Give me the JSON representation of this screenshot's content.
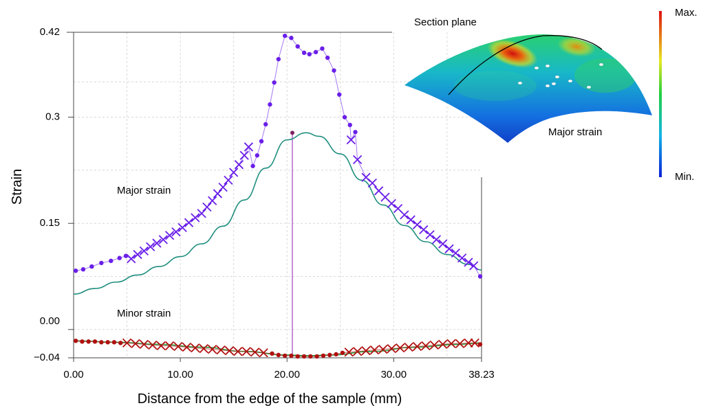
{
  "chart_data": {
    "type": "scatter",
    "xlabel": "Distance from the edge of the sample (mm)",
    "ylabel": "Strain",
    "xlim": [
      0,
      38.23
    ],
    "ylim": [
      -0.04,
      0.42
    ],
    "x_ticks": [
      {
        "value": 0,
        "label": "0.00"
      },
      {
        "value": 10,
        "label": "10.00"
      },
      {
        "value": 20,
        "label": "20.00"
      },
      {
        "value": 30,
        "label": "30.00"
      },
      {
        "value": 38.23,
        "label": "38.23"
      }
    ],
    "y_ticks": [
      {
        "value": 0.42,
        "label": "0.42"
      },
      {
        "value": 0.3,
        "label": "0.3"
      },
      {
        "value": 0.15,
        "label": "0.15"
      },
      {
        "value": 0.0,
        "label": "0.00"
      },
      {
        "value": -0.04,
        "label": "−0.04"
      }
    ],
    "grid": true,
    "marker_x": 20.5,
    "annotations": {
      "major": "Major strain",
      "minor": "Minor strain"
    },
    "series": [
      {
        "id": "major_dots",
        "color": "#6a1fe8",
        "marker": "dot",
        "x": [
          0.2,
          0.9,
          1.7,
          2.6,
          3.5,
          4.3,
          4.9,
          19.8,
          20.4,
          21.0,
          21.6,
          22.1,
          22.7,
          23.3,
          23.8,
          24.4,
          24.9,
          25.4,
          25.9,
          26.4,
          38.1
        ],
        "y": [
          0.083,
          0.085,
          0.089,
          0.094,
          0.097,
          0.101,
          0.104,
          0.415,
          0.412,
          0.4,
          0.391,
          0.389,
          0.392,
          0.397,
          0.384,
          0.366,
          0.332,
          0.3,
          0.289,
          0.279,
          0.075
        ]
      },
      {
        "id": "major_dots_left_rise",
        "color": "#6a1fe8",
        "marker": "dot",
        "x": [
          16.8,
          17.2,
          17.6,
          18.0,
          18.4,
          18.8,
          19.2
        ],
        "y": [
          0.231,
          0.246,
          0.266,
          0.29,
          0.318,
          0.349,
          0.382
        ]
      },
      {
        "id": "major_crosses",
        "color": "#6a1fe8",
        "marker": "cross",
        "x": [
          5.4,
          6.0,
          6.6,
          7.2,
          7.8,
          8.4,
          9.0,
          9.6,
          10.2,
          10.8,
          11.4,
          12.0,
          12.5,
          13.0,
          13.5,
          14.0,
          14.5,
          15.0,
          15.5,
          16.0,
          16.4,
          26.0,
          26.6,
          27.4,
          28.0,
          28.6,
          29.2,
          29.8,
          30.4,
          31.0,
          31.6,
          32.2,
          32.8,
          33.4,
          34.0,
          34.6,
          35.2,
          35.8,
          36.4,
          37.0,
          37.5
        ],
        "y": [
          0.1,
          0.106,
          0.111,
          0.117,
          0.122,
          0.127,
          0.133,
          0.138,
          0.144,
          0.151,
          0.158,
          0.164,
          0.173,
          0.182,
          0.192,
          0.201,
          0.211,
          0.222,
          0.233,
          0.246,
          0.258,
          0.268,
          0.24,
          0.215,
          0.207,
          0.196,
          0.187,
          0.178,
          0.171,
          0.162,
          0.155,
          0.148,
          0.141,
          0.134,
          0.127,
          0.121,
          0.114,
          0.108,
          0.101,
          0.095,
          0.09
        ]
      },
      {
        "id": "major_fit",
        "color": "#1e8e7e",
        "marker": "line",
        "x": [
          0,
          2,
          4,
          6,
          8,
          10,
          12,
          14,
          16,
          18,
          20,
          21.8,
          23,
          25,
          27,
          29,
          31,
          33,
          35,
          37,
          38.23
        ],
        "y": [
          0.05,
          0.058,
          0.067,
          0.077,
          0.089,
          0.103,
          0.121,
          0.146,
          0.183,
          0.228,
          0.268,
          0.278,
          0.273,
          0.248,
          0.211,
          0.176,
          0.147,
          0.124,
          0.106,
          0.092,
          0.084
        ]
      },
      {
        "id": "minor_dots",
        "color": "#b01010",
        "marker": "dot",
        "x": [
          0.2,
          0.8,
          1.4,
          2.0,
          2.6,
          3.2,
          3.8,
          4.4,
          18.6,
          19.2,
          19.8,
          20.4,
          21.0,
          21.6,
          22.2,
          22.8,
          23.4,
          24.0,
          24.6,
          25.2,
          38.1
        ],
        "y": [
          -0.016,
          -0.017,
          -0.017,
          -0.017,
          -0.018,
          -0.018,
          -0.018,
          -0.019,
          -0.034,
          -0.036,
          -0.037,
          -0.037,
          -0.038,
          -0.038,
          -0.038,
          -0.038,
          -0.037,
          -0.036,
          -0.035,
          -0.033,
          -0.021
        ]
      },
      {
        "id": "minor_crosses",
        "color": "#b01010",
        "marker": "cross",
        "x": [
          5.0,
          5.8,
          6.6,
          7.4,
          8.2,
          9.0,
          9.8,
          10.6,
          11.4,
          12.2,
          13.0,
          13.8,
          14.6,
          15.4,
          16.2,
          17.0,
          17.8,
          25.8,
          26.6,
          27.4,
          28.2,
          29.0,
          29.8,
          30.6,
          31.4,
          32.2,
          33.0,
          33.8,
          34.6,
          35.4,
          36.2,
          37.0,
          37.6
        ],
        "y": [
          -0.019,
          -0.02,
          -0.021,
          -0.022,
          -0.023,
          -0.023,
          -0.024,
          -0.025,
          -0.026,
          -0.027,
          -0.028,
          -0.029,
          -0.03,
          -0.031,
          -0.031,
          -0.032,
          -0.033,
          -0.032,
          -0.031,
          -0.03,
          -0.029,
          -0.028,
          -0.027,
          -0.026,
          -0.025,
          -0.024,
          -0.023,
          -0.022,
          -0.021,
          -0.02,
          -0.02,
          -0.019,
          -0.019
        ]
      },
      {
        "id": "minor_fit",
        "color": "#1f9a3a",
        "marker": "line",
        "x": [
          0,
          4,
          8,
          12,
          16,
          20,
          22,
          24,
          28,
          32,
          36,
          38.23
        ],
        "y": [
          -0.016,
          -0.018,
          -0.021,
          -0.025,
          -0.031,
          -0.036,
          -0.037,
          -0.036,
          -0.031,
          -0.025,
          -0.021,
          -0.019
        ]
      }
    ]
  },
  "inset": {
    "section_plane_label": "Section plane",
    "major_strain_label": "Major strain",
    "colorbar_max": "Max.",
    "colorbar_min": "Min."
  }
}
